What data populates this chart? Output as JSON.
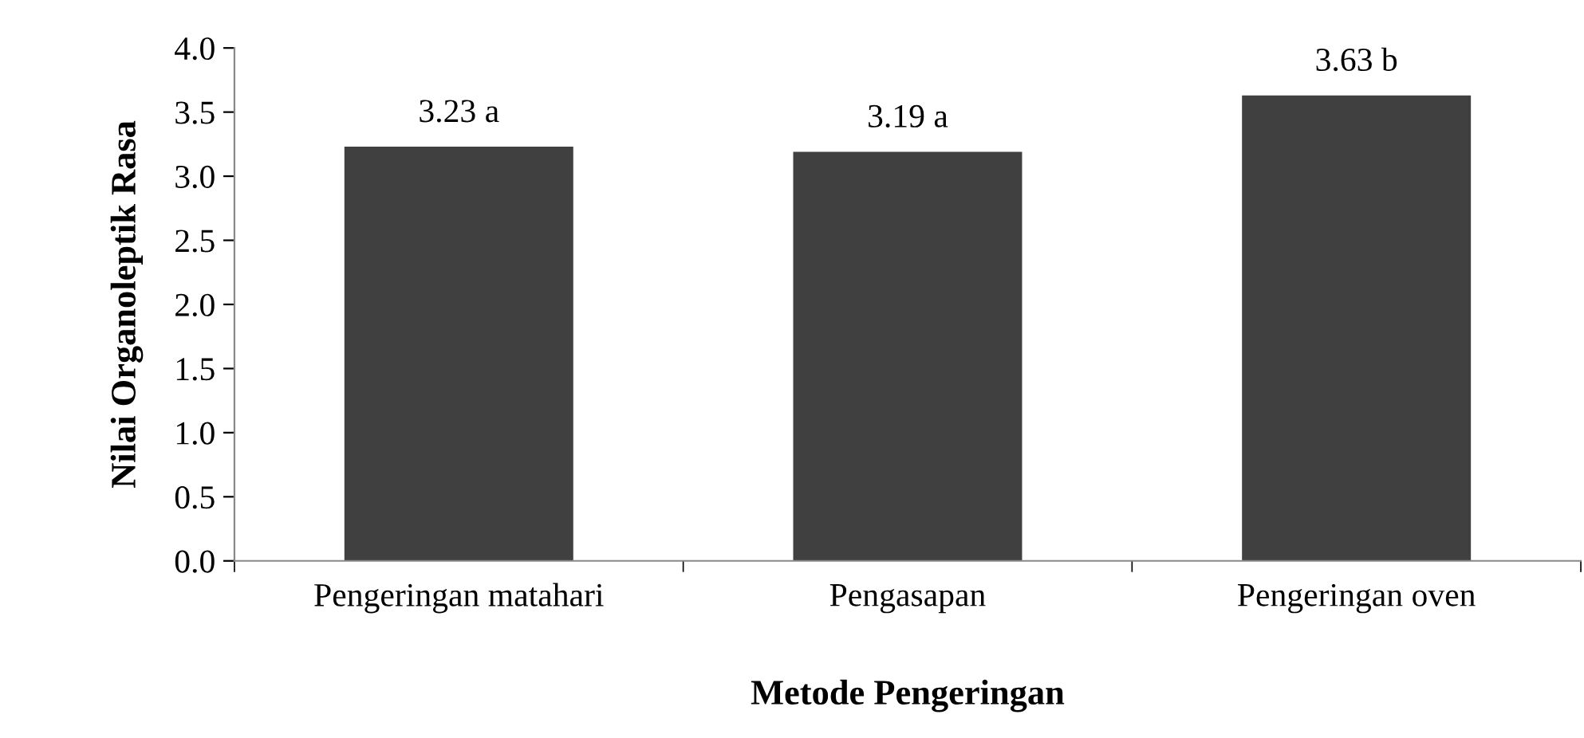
{
  "chart_data": {
    "type": "bar",
    "xlabel": "Metode Pengeringan",
    "ylabel": "Nilai Organoleptik Rasa",
    "categories": [
      "Pengeringan matahari",
      "Pengasapan",
      "Pengeringan oven"
    ],
    "values": [
      3.23,
      3.19,
      3.63
    ],
    "color": "#404040",
    "value_labels": [
      "3.23 a",
      "3.19 a",
      "3.63 b"
    ],
    "ylim": [
      0,
      4
    ],
    "yticks": [
      {
        "value": 0,
        "label": "0.0"
      },
      {
        "value": 0.5,
        "label": "0.5"
      },
      {
        "value": 1,
        "label": "1.0"
      },
      {
        "value": 1.5,
        "label": "1.5"
      },
      {
        "value": 2,
        "label": "2.0"
      },
      {
        "value": 2.5,
        "label": "2.5"
      },
      {
        "value": 3,
        "label": "3.0"
      },
      {
        "value": 3.5,
        "label": "3.5"
      },
      {
        "value": 4,
        "label": "4.0"
      }
    ],
    "grid": false,
    "legend": false
  }
}
